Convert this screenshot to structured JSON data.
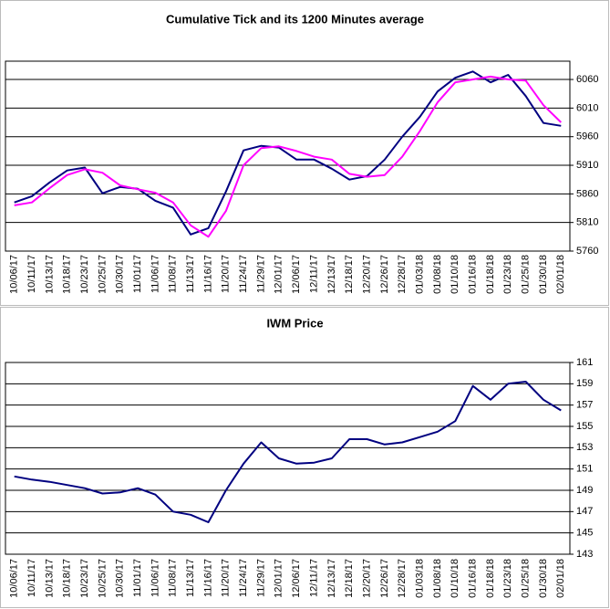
{
  "chart_data": [
    {
      "type": "line",
      "title": "Cumulative Tick and its 1200 Minutes average",
      "categories": [
        "10/06/17",
        "10/11/17",
        "10/13/17",
        "10/18/17",
        "10/23/17",
        "10/25/17",
        "10/30/17",
        "11/01/17",
        "11/06/17",
        "11/08/17",
        "11/13/17",
        "11/16/17",
        "11/20/17",
        "11/24/17",
        "11/29/17",
        "12/01/17",
        "12/06/17",
        "12/11/17",
        "12/13/17",
        "12/18/17",
        "12/20/17",
        "12/26/17",
        "12/28/17",
        "01/03/18",
        "01/08/18",
        "01/10/18",
        "01/16/18",
        "01/18/18",
        "01/23/18",
        "01/25/18",
        "01/30/18",
        "02/01/18"
      ],
      "series": [
        {
          "color": "#000080",
          "values": [
            5845,
            5856,
            5880,
            5901,
            5906,
            5861,
            5872,
            5869,
            5848,
            5836,
            5789,
            5800,
            5864,
            5936,
            5944,
            5941,
            5920,
            5920,
            5904,
            5885,
            5891,
            5920,
            5960,
            5995,
            6039,
            6063,
            6074,
            6055,
            6068,
            6031,
            5984,
            5979
          ]
        },
        {
          "color": "#ff00ff",
          "values": [
            5840,
            5845,
            5870,
            5893,
            5903,
            5897,
            5875,
            5868,
            5862,
            5845,
            5805,
            5785,
            5830,
            5910,
            5940,
            5943,
            5935,
            5925,
            5920,
            5895,
            5890,
            5893,
            5925,
            5970,
            6020,
            6055,
            6060,
            6065,
            6060,
            6058,
            6015,
            5985
          ]
        }
      ],
      "ylim": [
        5760,
        6092
      ],
      "yticks": [
        5760,
        5810,
        5860,
        5910,
        5960,
        6010,
        6060
      ],
      "grid": true
    },
    {
      "type": "line",
      "title": "IWM Price",
      "categories": [
        "10/06/17",
        "10/11/17",
        "10/13/17",
        "10/18/17",
        "10/23/17",
        "10/25/17",
        "10/30/17",
        "11/01/17",
        "11/06/17",
        "11/08/17",
        "11/13/17",
        "11/16/17",
        "11/20/17",
        "11/24/17",
        "11/29/17",
        "12/01/17",
        "12/06/17",
        "12/11/17",
        "12/13/17",
        "12/18/17",
        "12/20/17",
        "12/26/17",
        "12/28/17",
        "01/03/18",
        "01/08/18",
        "01/10/18",
        "01/16/18",
        "01/18/18",
        "01/23/18",
        "01/25/18",
        "01/30/18",
        "02/01/18"
      ],
      "series": [
        {
          "color": "#000080",
          "values": [
            150.3,
            150,
            149.8,
            149.5,
            149.2,
            148.7,
            148.8,
            149.2,
            148.6,
            147,
            146.7,
            146,
            149,
            151.5,
            153.5,
            152,
            151.5,
            151.6,
            152,
            153.8,
            153.8,
            153.3,
            153.5,
            154,
            154.5,
            155.5,
            158.8,
            157.5,
            159,
            159.2,
            157.5,
            156.5
          ]
        }
      ],
      "ylim": [
        143,
        161
      ],
      "yticks": [
        143,
        145,
        147,
        149,
        151,
        153,
        155,
        157,
        159,
        161
      ],
      "grid": true
    }
  ]
}
